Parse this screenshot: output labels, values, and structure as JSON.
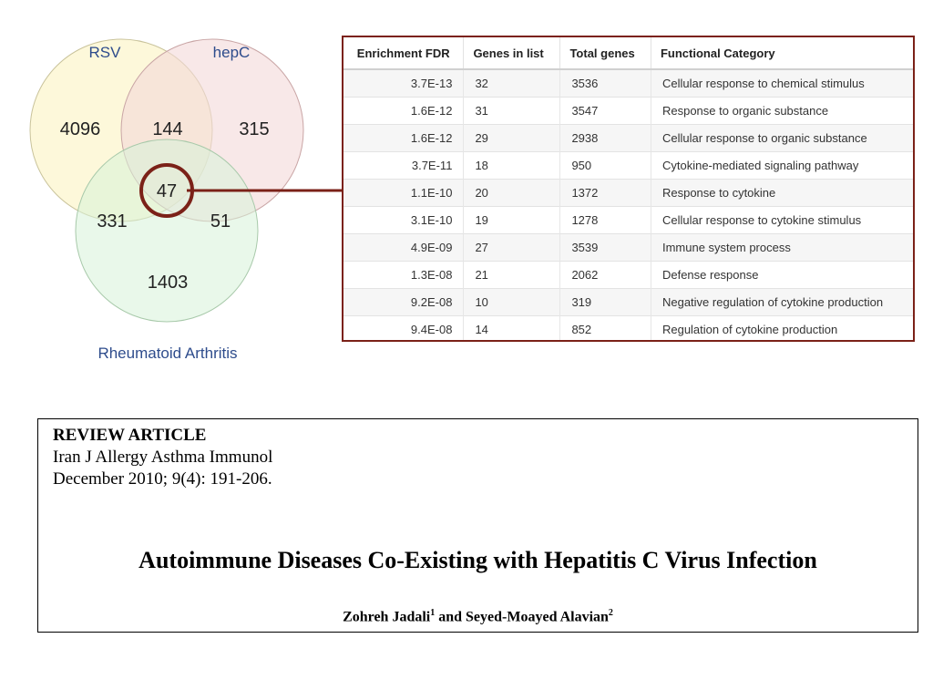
{
  "venn": {
    "sets": {
      "rsv": {
        "label": "RSV",
        "fill": "#fdf7d3"
      },
      "hepc": {
        "label": "hepC",
        "fill": "#f4d9d9"
      },
      "ra": {
        "label": "Rheumatoid Arthritis",
        "fill": "#d7f2d9"
      }
    },
    "regions": {
      "rsv_only": "4096",
      "rsv_hepc": "144",
      "hepc_only": "315",
      "all_three": "47",
      "rsv_ra": "331",
      "hepc_ra": "51",
      "ra_only": "1403"
    },
    "highlight_color": "#7b2118"
  },
  "table": {
    "headers": [
      "Enrichment FDR",
      "Genes in list",
      "Total genes",
      "Functional Category"
    ],
    "rows": [
      [
        "3.7E-13",
        "32",
        "3536",
        "Cellular response to chemical stimulus"
      ],
      [
        "1.6E-12",
        "31",
        "3547",
        "Response to organic substance"
      ],
      [
        "1.6E-12",
        "29",
        "2938",
        "Cellular response to organic substance"
      ],
      [
        "3.7E-11",
        "18",
        "950",
        "Cytokine-mediated signaling pathway"
      ],
      [
        "1.1E-10",
        "20",
        "1372",
        "Response to cytokine"
      ],
      [
        "3.1E-10",
        "19",
        "1278",
        "Cellular response to cytokine stimulus"
      ],
      [
        "4.9E-09",
        "27",
        "3539",
        "Immune system process"
      ],
      [
        "1.3E-08",
        "21",
        "2062",
        "Defense response"
      ],
      [
        "9.2E-08",
        "10",
        "319",
        "Negative regulation of cytokine production"
      ],
      [
        "9.4E-08",
        "14",
        "852",
        "Regulation of cytokine production"
      ]
    ]
  },
  "article": {
    "type": "REVIEW ARTICLE",
    "journal": "Iran J Allergy Asthma Immunol",
    "issue": "December 2010; 9(4): 191-206.",
    "title": "Autoimmune Diseases Co-Existing with Hepatitis C Virus Infection",
    "author1": "Zohreh Jadali",
    "author1_sup": "1",
    "author_and": " and ",
    "author2": "Seyed-Moayed Alavian",
    "author2_sup": "2"
  }
}
